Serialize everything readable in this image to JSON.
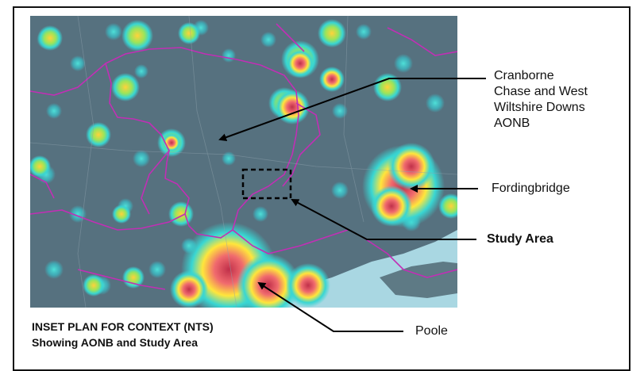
{
  "labels": {
    "aonb_lines": [
      "Cranborne",
      "Chase and West",
      "Wiltshire Downs",
      "AONB"
    ],
    "fordingbridge": "Fordingbridge",
    "study_area": "Study Area",
    "poole": "Poole"
  },
  "caption": {
    "line1": "INSET PLAN FOR CONTEXT (NTS)",
    "line2": "Showing AONB and Study Area"
  },
  "colors": {
    "map_base": "#55707e",
    "boundary": "#c12fb5",
    "sea": "#a9d7e2",
    "heat_low": "#3ad6d6",
    "heat_mid": "#ffe63b",
    "heat_high": "#e05a6c"
  }
}
